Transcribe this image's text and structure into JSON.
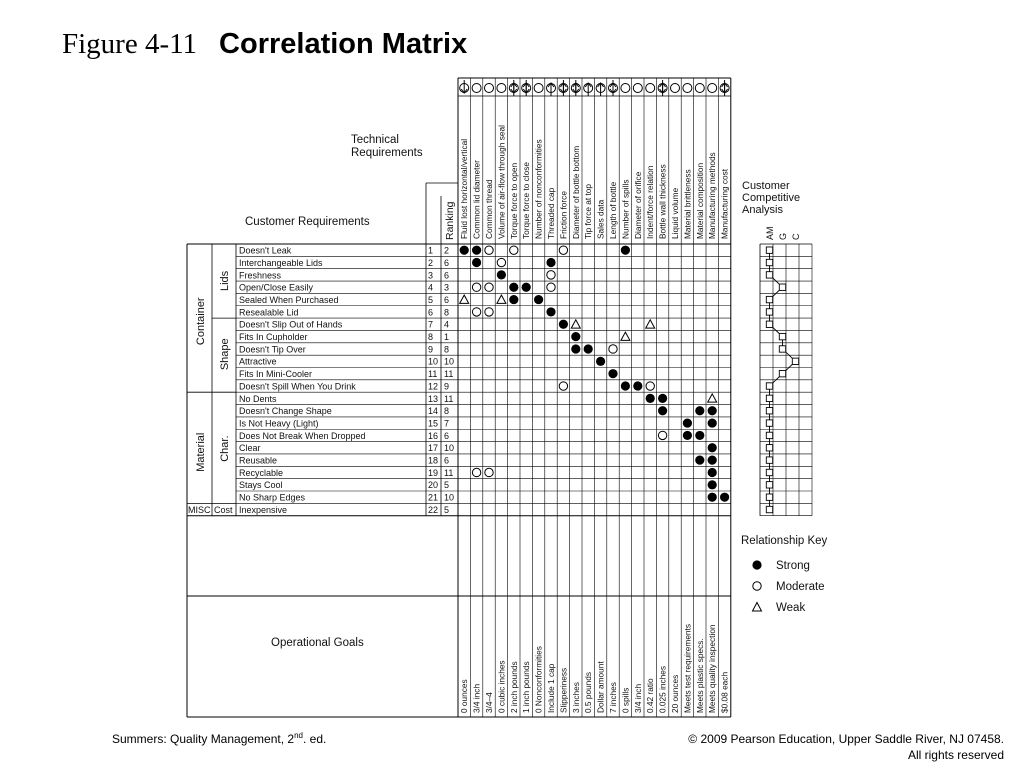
{
  "figure_label": "Figure 4-11",
  "figure_title": "Correlation Matrix",
  "headers": {
    "technical_requirements": [
      "Technical",
      "Requirements"
    ],
    "customer_requirements": "Customer Requirements",
    "ranking": "Ranking",
    "competitive": [
      "Customer",
      "Competitive",
      "Analysis"
    ],
    "comp_letters": [
      "AM",
      "G",
      "C"
    ],
    "operational_goals": "Operational Goals"
  },
  "arrows": [
    "down",
    "none",
    "none",
    "none",
    "updown",
    "updown",
    "none",
    "up",
    "updown",
    "updown",
    "up",
    "up",
    "updown",
    "none",
    "none",
    "none",
    "updown",
    "none",
    "none",
    "none",
    "none",
    "updown"
  ],
  "columns": [
    {
      "label": "Fluid lost horizontal/vertical",
      "goal": "0 ounces"
    },
    {
      "label": "Common lid diameter",
      "goal": "3/4 inch"
    },
    {
      "label": "Common thread",
      "goal": "3/4–4"
    },
    {
      "label": "Volume of air-flow through seal",
      "goal": "0 cubic inches"
    },
    {
      "label": "Torque force to open",
      "goal": "2 inch pounds"
    },
    {
      "label": "Torque force to close",
      "goal": "1 inch pounds"
    },
    {
      "label": "Number of nonconformities",
      "goal": "0 Nonconformities"
    },
    {
      "label": "Threaded cap",
      "goal": "Include 1 cap"
    },
    {
      "label": "Friction force",
      "goal": "Slipperiness"
    },
    {
      "label": "Diameter of bottle bottom",
      "goal": "3 inches"
    },
    {
      "label": "Tip force at top",
      "goal": "0.5 pounds"
    },
    {
      "label": "Sales data",
      "goal": "Dollar amount"
    },
    {
      "label": "Length of bottle",
      "goal": "7 inches"
    },
    {
      "label": "Number of spills",
      "goal": "0 spills"
    },
    {
      "label": "Diameter of orifice",
      "goal": "3/4 inch"
    },
    {
      "label": "Indent/force relation",
      "goal": "0.42 ratio"
    },
    {
      "label": "Bottle wall thickness",
      "goal": "0.025 inches"
    },
    {
      "label": "Liquid volume",
      "goal": "20 ounces"
    },
    {
      "label": "Material brittleness",
      "goal": "Meets test requirements"
    },
    {
      "label": "Material composition",
      "goal": "Meets plastic specs."
    },
    {
      "label": "Manufacturing methods",
      "goal": "Meets quality inspection"
    },
    {
      "label": "Manufacturing cost",
      "goal": "$0.08 each"
    }
  ],
  "groups": {
    "container": "Container",
    "lids": "Lids",
    "shape": "Shape",
    "material": "Material",
    "char": "Char.",
    "misc": "MISC",
    "cost": "Cost"
  },
  "rows": [
    {
      "label": "Doesn't Leak",
      "num": "1",
      "rank": "2",
      "cells": [
        "S",
        "S",
        "M",
        "",
        "M",
        "",
        "",
        "",
        "M",
        "",
        "",
        "",
        "",
        "S",
        "",
        "",
        "",
        "",
        "",
        "",
        "",
        ""
      ],
      "comp": [
        0,
        1,
        1
      ]
    },
    {
      "label": "Interchangeable Lids",
      "num": "2",
      "rank": "6",
      "cells": [
        "",
        "S",
        "",
        "M",
        "",
        "",
        "",
        "S",
        "",
        "",
        "",
        "",
        "",
        "",
        "",
        "",
        "",
        "",
        "",
        "",
        "",
        ""
      ],
      "comp": [
        0,
        1,
        1
      ]
    },
    {
      "label": "Freshness",
      "num": "3",
      "rank": "6",
      "cells": [
        "",
        "",
        "",
        "S",
        "",
        "",
        "",
        "M",
        "",
        "",
        "",
        "",
        "",
        "",
        "",
        "",
        "",
        "",
        "",
        "",
        "",
        ""
      ],
      "comp": [
        0,
        1,
        1
      ]
    },
    {
      "label": "Open/Close Easily",
      "num": "4",
      "rank": "3",
      "cells": [
        "",
        "M",
        "M",
        "",
        "S",
        "S",
        "",
        "M",
        "",
        "",
        "",
        "",
        "",
        "",
        "",
        "",
        "",
        "",
        "",
        "",
        "",
        ""
      ],
      "comp": [
        1,
        2,
        2
      ]
    },
    {
      "label": "Sealed When Purchased",
      "num": "5",
      "rank": "6",
      "cells": [
        "W",
        "",
        "",
        "W",
        "S",
        "",
        "S",
        "",
        "",
        "",
        "",
        "",
        "",
        "",
        "",
        "",
        "",
        "",
        "",
        "",
        "",
        ""
      ],
      "comp": [
        0,
        1,
        1
      ]
    },
    {
      "label": "Resealable Lid",
      "num": "6",
      "rank": "8",
      "cells": [
        "",
        "M",
        "M",
        "",
        "",
        "",
        "",
        "S",
        "",
        "",
        "",
        "",
        "",
        "",
        "",
        "",
        "",
        "",
        "",
        "",
        "",
        ""
      ],
      "comp": [
        0,
        1,
        1
      ]
    },
    {
      "label": "Doesn't Slip Out of Hands",
      "num": "7",
      "rank": "4",
      "cells": [
        "",
        "",
        "",
        "",
        "",
        "",
        "",
        "",
        "S",
        "W",
        "",
        "",
        "",
        "",
        "",
        "W",
        "",
        "",
        "",
        "",
        "",
        ""
      ],
      "comp": [
        0,
        1,
        1
      ]
    },
    {
      "label": "Fits In Cupholder",
      "num": "8",
      "rank": "1",
      "cells": [
        "",
        "",
        "",
        "",
        "",
        "",
        "",
        "",
        "",
        "S",
        "",
        "",
        "",
        "W",
        "",
        "",
        "",
        "",
        "",
        "",
        "",
        ""
      ],
      "comp": [
        1,
        2,
        2
      ]
    },
    {
      "label": "Doesn't Tip Over",
      "num": "9",
      "rank": "8",
      "cells": [
        "",
        "",
        "",
        "",
        "",
        "",
        "",
        "",
        "",
        "S",
        "S",
        "",
        "M",
        "",
        "",
        "",
        "",
        "",
        "",
        "",
        "",
        ""
      ],
      "comp": [
        1,
        2,
        2
      ]
    },
    {
      "label": "Attractive",
      "num": "10",
      "rank": "10",
      "cells": [
        "",
        "",
        "",
        "",
        "",
        "",
        "",
        "",
        "",
        "",
        "",
        "S",
        "",
        "",
        "",
        "",
        "",
        "",
        "",
        "",
        "",
        ""
      ],
      "comp": [
        2,
        2,
        2
      ]
    },
    {
      "label": "Fits In Mini-Cooler",
      "num": "11",
      "rank": "11",
      "cells": [
        "",
        "",
        "",
        "",
        "",
        "",
        "",
        "",
        "",
        "",
        "",
        "",
        "S",
        "",
        "",
        "",
        "",
        "",
        "",
        "",
        "",
        ""
      ],
      "comp": [
        1,
        2,
        2
      ]
    },
    {
      "label": "Doesn't Spill When You Drink",
      "num": "12",
      "rank": "9",
      "cells": [
        "",
        "",
        "",
        "",
        "",
        "",
        "",
        "",
        "M",
        "",
        "",
        "",
        "",
        "S",
        "S",
        "M",
        "",
        "",
        "",
        "",
        "",
        ""
      ],
      "comp": [
        0,
        1,
        1
      ]
    },
    {
      "label": "No Dents",
      "num": "13",
      "rank": "11",
      "cells": [
        "",
        "",
        "",
        "",
        "",
        "",
        "",
        "",
        "",
        "",
        "",
        "",
        "",
        "",
        "",
        "S",
        "S",
        "",
        "",
        "",
        "W",
        ""
      ],
      "comp": [
        0,
        1,
        1
      ]
    },
    {
      "label": "Doesn't Change Shape",
      "num": "14",
      "rank": "8",
      "cells": [
        "",
        "",
        "",
        "",
        "",
        "",
        "",
        "",
        "",
        "",
        "",
        "",
        "",
        "",
        "",
        "",
        "S",
        "",
        "",
        "S",
        "S",
        ""
      ],
      "comp": [
        0,
        1,
        1
      ]
    },
    {
      "label": "Is Not Heavy (Light)",
      "num": "15",
      "rank": "7",
      "cells": [
        "",
        "",
        "",
        "",
        "",
        "",
        "",
        "",
        "",
        "",
        "",
        "",
        "",
        "",
        "",
        "",
        "",
        "",
        "S",
        "",
        "S",
        ""
      ],
      "comp": [
        0,
        1,
        1
      ]
    },
    {
      "label": "Does Not Break When Dropped",
      "num": "16",
      "rank": "6",
      "cells": [
        "",
        "",
        "",
        "",
        "",
        "",
        "",
        "",
        "",
        "",
        "",
        "",
        "",
        "",
        "",
        "",
        "M",
        "",
        "S",
        "S",
        "",
        ""
      ],
      "comp": [
        0,
        1,
        1
      ]
    },
    {
      "label": "Clear",
      "num": "17",
      "rank": "10",
      "cells": [
        "",
        "",
        "",
        "",
        "",
        "",
        "",
        "",
        "",
        "",
        "",
        "",
        "",
        "",
        "",
        "",
        "",
        "",
        "",
        "",
        "S",
        ""
      ],
      "comp": [
        0,
        1,
        1
      ]
    },
    {
      "label": "Reusable",
      "num": "18",
      "rank": "6",
      "cells": [
        "",
        "",
        "",
        "",
        "",
        "",
        "",
        "",
        "",
        "",
        "",
        "",
        "",
        "",
        "",
        "",
        "",
        "",
        "",
        "S",
        "S",
        ""
      ],
      "comp": [
        0,
        1,
        1
      ]
    },
    {
      "label": "Recyclable",
      "num": "19",
      "rank": "11",
      "cells": [
        "",
        "M",
        "M",
        "",
        "",
        "",
        "",
        "",
        "",
        "",
        "",
        "",
        "",
        "",
        "",
        "",
        "",
        "",
        "",
        "",
        "S",
        ""
      ],
      "comp": [
        0,
        1,
        1
      ]
    },
    {
      "label": "Stays Cool",
      "num": "20",
      "rank": "5",
      "cells": [
        "",
        "",
        "",
        "",
        "",
        "",
        "",
        "",
        "",
        "",
        "",
        "",
        "",
        "",
        "",
        "",
        "",
        "",
        "",
        "",
        "S",
        ""
      ],
      "comp": [
        0,
        1,
        1
      ]
    },
    {
      "label": "No Sharp Edges",
      "num": "21",
      "rank": "10",
      "cells": [
        "",
        "",
        "",
        "",
        "",
        "",
        "",
        "",
        "",
        "",
        "",
        "",
        "",
        "",
        "",
        "",
        "",
        "",
        "",
        "",
        "S",
        "S"
      ],
      "comp": [
        0,
        1,
        1
      ]
    },
    {
      "label": "Inexpensive",
      "num": "22",
      "rank": "5",
      "cells": [
        "",
        "",
        "",
        "",
        "",
        "",
        "",
        "",
        "",
        "",
        "",
        "",
        "",
        "",
        "",
        "",
        "",
        "",
        "",
        "",
        "",
        ""
      ],
      "comp": [
        0,
        1,
        1
      ]
    }
  ],
  "relationship_key": {
    "title": "Relationship Key",
    "strong": "Strong",
    "moderate": "Moderate",
    "weak": "Weak"
  },
  "footer": {
    "left_prefix": "Summers: Quality Management, 2",
    "left_sup": "nd",
    "left_suffix": ". ed.",
    "right_line1": "© 2009 Pearson Education, Upper Saddle River, NJ 07458.",
    "right_line2": "All rights reserved"
  }
}
